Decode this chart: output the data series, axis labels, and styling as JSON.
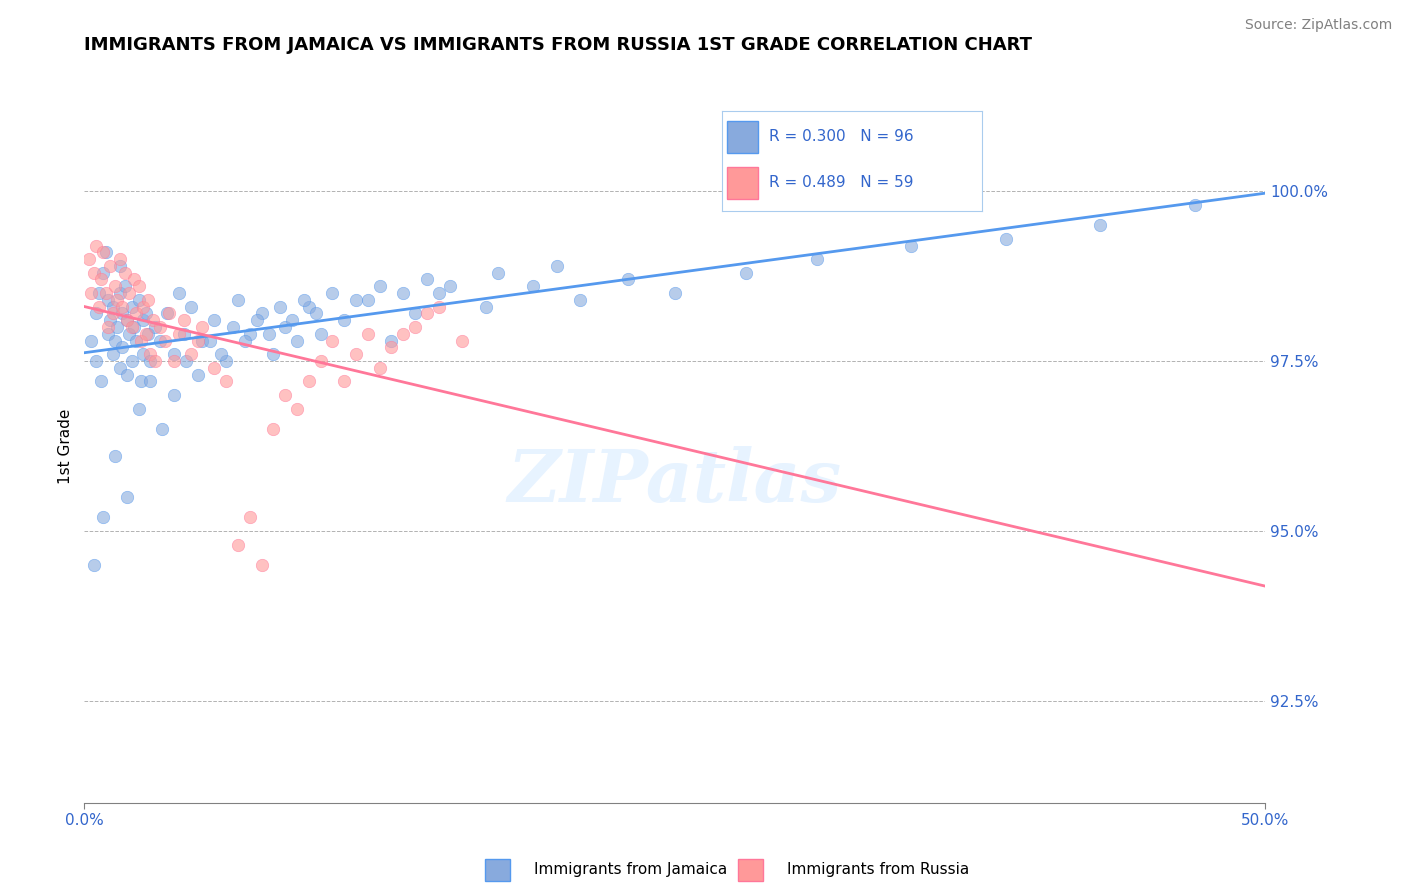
{
  "title": "IMMIGRANTS FROM JAMAICA VS IMMIGRANTS FROM RUSSIA 1ST GRADE CORRELATION CHART",
  "source_text": "Source: ZipAtlas.com",
  "xlabel": "",
  "ylabel": "1st Grade",
  "watermark": "ZIPatlas",
  "xlim": [
    0.0,
    50.0
  ],
  "ylim": [
    91.0,
    101.5
  ],
  "xticklabels": [
    "0.0%",
    "50.0%"
  ],
  "yticklabels_right": [
    "92.5%",
    "95.0%",
    "97.5%",
    "100.0%"
  ],
  "yticks_right": [
    92.5,
    95.0,
    97.5,
    100.0
  ],
  "legend_jamaica": "Immigrants from Jamaica",
  "legend_russia": "Immigrants from Russia",
  "R_jamaica": 0.3,
  "N_jamaica": 96,
  "R_russia": 0.489,
  "N_russia": 59,
  "color_jamaica": "#88AADD",
  "color_russia": "#FF9999",
  "color_line_jamaica": "#5599EE",
  "color_line_russia": "#FF7799",
  "jamaica_x": [
    0.3,
    0.5,
    0.5,
    0.6,
    0.7,
    0.8,
    0.9,
    1.0,
    1.0,
    1.1,
    1.2,
    1.2,
    1.3,
    1.4,
    1.5,
    1.5,
    1.5,
    1.6,
    1.6,
    1.7,
    1.8,
    1.8,
    1.9,
    2.0,
    2.0,
    2.1,
    2.2,
    2.3,
    2.4,
    2.5,
    2.5,
    2.6,
    2.7,
    2.8,
    3.0,
    3.2,
    3.5,
    3.8,
    4.0,
    4.2,
    4.5,
    5.0,
    5.5,
    6.0,
    6.5,
    7.0,
    7.5,
    8.0,
    8.5,
    9.0,
    9.5,
    10.0,
    11.0,
    12.0,
    13.0,
    14.0,
    15.0,
    17.0,
    19.0,
    21.0,
    23.0,
    25.0,
    28.0,
    31.0,
    35.0,
    39.0,
    43.0,
    47.0,
    0.4,
    0.8,
    1.3,
    1.8,
    2.3,
    2.8,
    3.3,
    3.8,
    4.3,
    4.8,
    5.3,
    5.8,
    6.3,
    6.8,
    7.3,
    7.8,
    8.3,
    8.8,
    9.3,
    9.8,
    10.5,
    11.5,
    12.5,
    13.5,
    14.5,
    15.5,
    17.5,
    20.0
  ],
  "jamaica_y": [
    97.8,
    98.2,
    97.5,
    98.5,
    97.2,
    98.8,
    99.1,
    97.9,
    98.4,
    98.1,
    97.6,
    98.3,
    97.8,
    98.0,
    98.5,
    98.9,
    97.4,
    98.2,
    97.7,
    98.6,
    97.3,
    98.1,
    97.9,
    98.3,
    97.5,
    98.0,
    97.8,
    98.4,
    97.2,
    98.1,
    97.6,
    98.2,
    97.9,
    97.5,
    98.0,
    97.8,
    98.2,
    97.6,
    98.5,
    97.9,
    98.3,
    97.8,
    98.1,
    97.5,
    98.4,
    97.9,
    98.2,
    97.6,
    98.0,
    97.8,
    98.3,
    97.9,
    98.1,
    98.4,
    97.8,
    98.2,
    98.5,
    98.3,
    98.6,
    98.4,
    98.7,
    98.5,
    98.8,
    99.0,
    99.2,
    99.3,
    99.5,
    99.8,
    94.5,
    95.2,
    96.1,
    95.5,
    96.8,
    97.2,
    96.5,
    97.0,
    97.5,
    97.3,
    97.8,
    97.6,
    98.0,
    97.8,
    98.1,
    97.9,
    98.3,
    98.1,
    98.4,
    98.2,
    98.5,
    98.4,
    98.6,
    98.5,
    98.7,
    98.6,
    98.8,
    98.9
  ],
  "russia_x": [
    0.2,
    0.3,
    0.4,
    0.5,
    0.6,
    0.7,
    0.8,
    0.9,
    1.0,
    1.1,
    1.2,
    1.3,
    1.4,
    1.5,
    1.6,
    1.7,
    1.8,
    1.9,
    2.0,
    2.1,
    2.2,
    2.3,
    2.4,
    2.5,
    2.6,
    2.7,
    2.8,
    2.9,
    3.0,
    3.2,
    3.4,
    3.6,
    3.8,
    4.0,
    4.2,
    4.5,
    4.8,
    5.0,
    5.5,
    6.0,
    6.5,
    7.0,
    7.5,
    8.0,
    8.5,
    9.0,
    9.5,
    10.0,
    10.5,
    11.0,
    11.5,
    12.0,
    12.5,
    13.0,
    13.5,
    14.0,
    14.5,
    15.0,
    16.0
  ],
  "russia_y": [
    99.0,
    98.5,
    98.8,
    99.2,
    98.3,
    98.7,
    99.1,
    98.5,
    98.0,
    98.9,
    98.2,
    98.6,
    98.4,
    99.0,
    98.3,
    98.8,
    98.1,
    98.5,
    98.0,
    98.7,
    98.2,
    98.6,
    97.8,
    98.3,
    97.9,
    98.4,
    97.6,
    98.1,
    97.5,
    98.0,
    97.8,
    98.2,
    97.5,
    97.9,
    98.1,
    97.6,
    97.8,
    98.0,
    97.4,
    97.2,
    94.8,
    95.2,
    94.5,
    96.5,
    97.0,
    96.8,
    97.2,
    97.5,
    97.8,
    97.2,
    97.6,
    97.9,
    97.4,
    97.7,
    97.9,
    98.0,
    98.2,
    98.3,
    97.8
  ]
}
